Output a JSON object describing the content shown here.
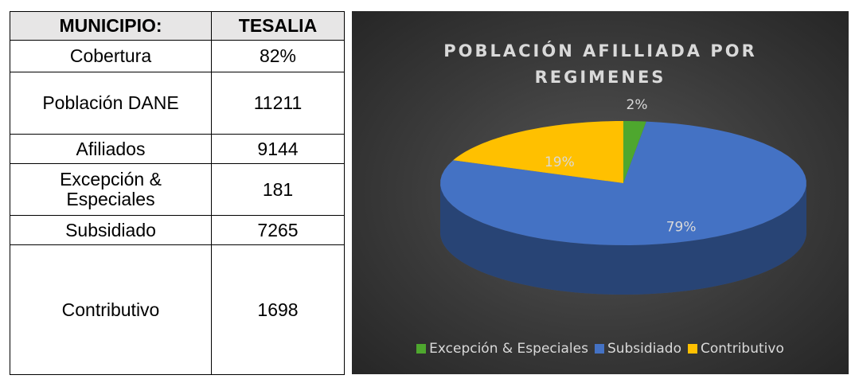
{
  "table": {
    "header": [
      "MUNICIPIO:",
      "TESALIA"
    ],
    "rows": [
      [
        "Cobertura",
        "82%"
      ],
      [
        "Población DANE",
        "11211"
      ],
      [
        "Afiliados",
        "9144"
      ],
      [
        "Excepción & Especiales",
        "181"
      ],
      [
        "Subsidiado",
        "7265"
      ],
      [
        "Contributivo",
        "1698"
      ]
    ]
  },
  "chart_data": {
    "type": "pie",
    "title": "POBLACIÓN AFILLIADA POR REGIMENES",
    "categories": [
      "Excepción & Especiales",
      "Subsidiado",
      "Contributivo"
    ],
    "values": [
      2,
      79,
      19
    ],
    "value_labels": [
      "2%",
      "79%",
      "19%"
    ],
    "colors": [
      "#4ea72e",
      "#4472c4",
      "#ffc000"
    ],
    "legend": "bottom"
  }
}
